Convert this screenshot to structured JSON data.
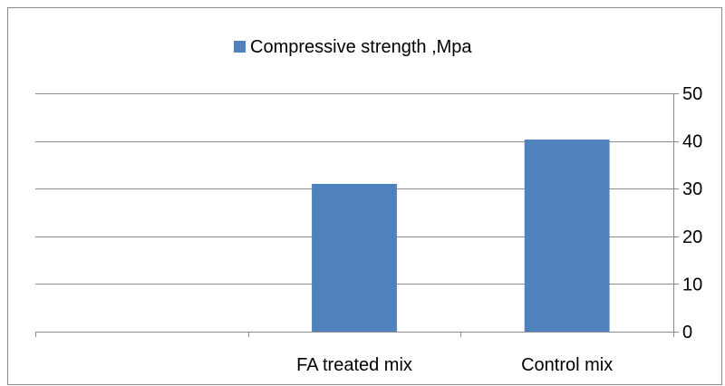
{
  "chart_data": {
    "type": "bar",
    "categories": [
      "",
      "FA treated mix",
      "Control mix"
    ],
    "series": [
      {
        "name": "Compressive strength ,Mpa",
        "values": [
          null,
          31,
          40.3
        ],
        "color": "#4F81BD"
      }
    ],
    "title": "",
    "xlabel": "",
    "ylabel": "",
    "ylim": [
      0,
      50
    ],
    "yticks": [
      0,
      10,
      20,
      30,
      40,
      50
    ],
    "y_axis_side": "right",
    "grid": true,
    "legend_position": "top-center"
  }
}
